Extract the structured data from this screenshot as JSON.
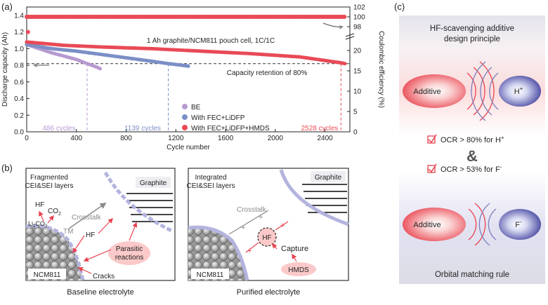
{
  "panel_labels": {
    "a": "(a)",
    "b": "(b)",
    "c": "(c)"
  },
  "colors": {
    "be": "#b79ad0",
    "fec": "#7b8fc6",
    "hmds": "#e84a56",
    "dashed": "#333333",
    "cell_box": "#333333",
    "grid_panel_bg": "#e6e6ee"
  },
  "chart_data": {
    "type": "scatter",
    "title": "",
    "annotation": "1 Ah graphite/NCM811 pouch cell, 1C/1C",
    "retention_label": "Capacity retention of 80%",
    "xlabel": "Cycle number",
    "ylabel_left": "Discharge capacity (Ah)",
    "ylabel_right": "Coulombic efficiency (%)",
    "xlim": [
      0,
      2600
    ],
    "ylim_left": [
      0.0,
      1.5
    ],
    "x_ticks": [
      "0",
      "400",
      "800",
      "1200",
      "1600",
      "2000",
      "2400"
    ],
    "x_tick_values": [
      0,
      400,
      800,
      1200,
      1600,
      2000,
      2400
    ],
    "y_ticks_left": [
      "0.0",
      "0.2",
      "0.4",
      "0.6",
      "0.8",
      "1.0",
      "1.2",
      "1.4"
    ],
    "y_tick_values_left": [
      0.0,
      0.2,
      0.4,
      0.6,
      0.8,
      1.0,
      1.2,
      1.4
    ],
    "y_ticks_right_low": [
      "0",
      "5",
      "10",
      "15",
      "20"
    ],
    "y_ticks_right_high": [
      "98",
      "100",
      "102"
    ],
    "retention_value": 0.82,
    "series": [
      {
        "name": "BE",
        "points": [
          [
            0,
            1.05
          ],
          [
            100,
            1.0
          ],
          [
            200,
            0.95
          ],
          [
            300,
            0.91
          ],
          [
            400,
            0.87
          ],
          [
            486,
            0.82
          ],
          [
            560,
            0.78
          ],
          [
            590,
            0.76
          ]
        ]
      },
      {
        "name": "With FEC+LiDFP",
        "points": [
          [
            0,
            1.05
          ],
          [
            200,
            1.0
          ],
          [
            400,
            0.97
          ],
          [
            600,
            0.93
          ],
          [
            800,
            0.89
          ],
          [
            1000,
            0.85
          ],
          [
            1139,
            0.82
          ],
          [
            1250,
            0.8
          ],
          [
            1300,
            0.79
          ]
        ]
      },
      {
        "name": "With FEC+LiDFP+HMDS",
        "points": [
          [
            0,
            1.08
          ],
          [
            300,
            1.04
          ],
          [
            600,
            1.02
          ],
          [
            1000,
            1.0
          ],
          [
            1400,
            0.97
          ],
          [
            1800,
            0.94
          ],
          [
            2200,
            0.9
          ],
          [
            2528,
            0.83
          ],
          [
            2560,
            0.82
          ]
        ]
      }
    ],
    "ce_points": "flat near 100% across all cycles",
    "cycle_labels": [
      "486 cycles",
      "1139 cycles",
      "2528 cycles"
    ],
    "cycle_label_values": [
      486,
      1139,
      2528
    ]
  },
  "panel_b": {
    "left": {
      "title_line1": "Fragmented",
      "title_line2": "CEI&SEI layers",
      "graphite": "Graphite",
      "hf": "HF",
      "co2": "CO",
      "co2_sub": "2",
      "li2co3": "Li",
      "li2co3_sub1": "2",
      "li2co3_mid": "CO",
      "li2co3_sub2": "3",
      "crosstalk": "Crosstalk",
      "tm": "TM",
      "hf2": "HF",
      "parasitic_line1": "Parasitic",
      "parasitic_line2": "reactions",
      "cracks": "Cracks",
      "ncm": "NCM811",
      "caption": "Baseline electrolyte"
    },
    "right": {
      "title_line1": "Integrated",
      "title_line2": "CEI&SEI layers",
      "graphite": "Graphite",
      "crosstalk": "Crosstalk",
      "hf": "HF",
      "capture": "Capture",
      "hmds": "HMDS",
      "ncm": "NCM811",
      "caption": "Purified electrolyte"
    }
  },
  "panel_c": {
    "title_line1": "HF-scavenging additive",
    "title_line2": "design principle",
    "additive": "Additive",
    "h_plus": "H",
    "h_sup": "+",
    "ocr1": "OCR > 80% for H",
    "ocr1_sup": "+",
    "amp": "&",
    "ocr2": "OCR > 53% for F",
    "ocr2_sup": "-",
    "additive2": "Additive",
    "f_minus": "F",
    "f_sup": "-",
    "footer": "Orbital matching rule"
  }
}
